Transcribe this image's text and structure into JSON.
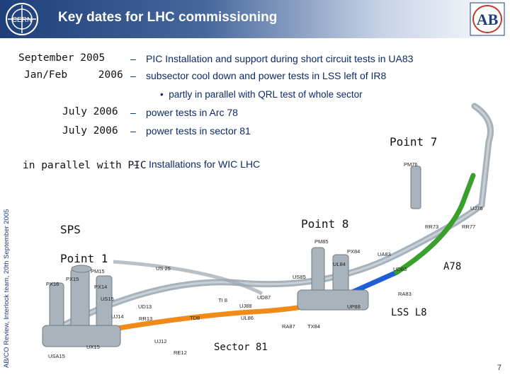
{
  "header": {
    "title": "Key dates for LHC commissioning",
    "cern_logo_text": "CERN",
    "ab_logo_text": "AB"
  },
  "sidebar_text": "AB/CO Review, Interlock team, 20th September 2005",
  "schedule": [
    {
      "date": "September 2005",
      "text": "PIC Installation and support during short circuit tests in UA83"
    },
    {
      "date": "Jan/Feb     2006",
      "text": "subsector cool down and power tests in LSS left of IR8"
    },
    {
      "date": "July 2006",
      "text": "power tests in Arc 78"
    },
    {
      "date": "July 2006",
      "text": "power tests in sector 81"
    },
    {
      "date": "in parallel with PIC",
      "text": "Installations for WIC LHC"
    }
  ],
  "sub_bullet": "partly in parallel with QRL test of whole sector",
  "dash": "–",
  "bullet": "•",
  "diagram": {
    "labels": {
      "point7": "Point 7",
      "point8": "Point 8",
      "point1": "Point 1",
      "sps": "SPS",
      "a78": "A78",
      "lss_l8": "LSS L8",
      "sector81": "Sector 81"
    },
    "small_labels": [
      "PM76",
      "RR73",
      "RR77",
      "UJ76",
      "PM85",
      "PX84",
      "UA83",
      "UD83",
      "RA83",
      "US85",
      "UL84",
      "UJ88",
      "UD87",
      "RA87",
      "TX84",
      "UL86",
      "PM15",
      "PX16",
      "PX15",
      "PX14",
      "US15",
      "UJ14",
      "UD13",
      "RR13",
      "TI 8",
      "UJ12",
      "RE12",
      "UX15",
      "USA15",
      "TD8",
      "US 25",
      "UP88"
    ],
    "colors": {
      "a78": "#3aa02c",
      "lss_l8": "#1f5fd6",
      "sector81": "#f08a18",
      "tunnel": "#8a98a4"
    }
  },
  "page_number": "7"
}
